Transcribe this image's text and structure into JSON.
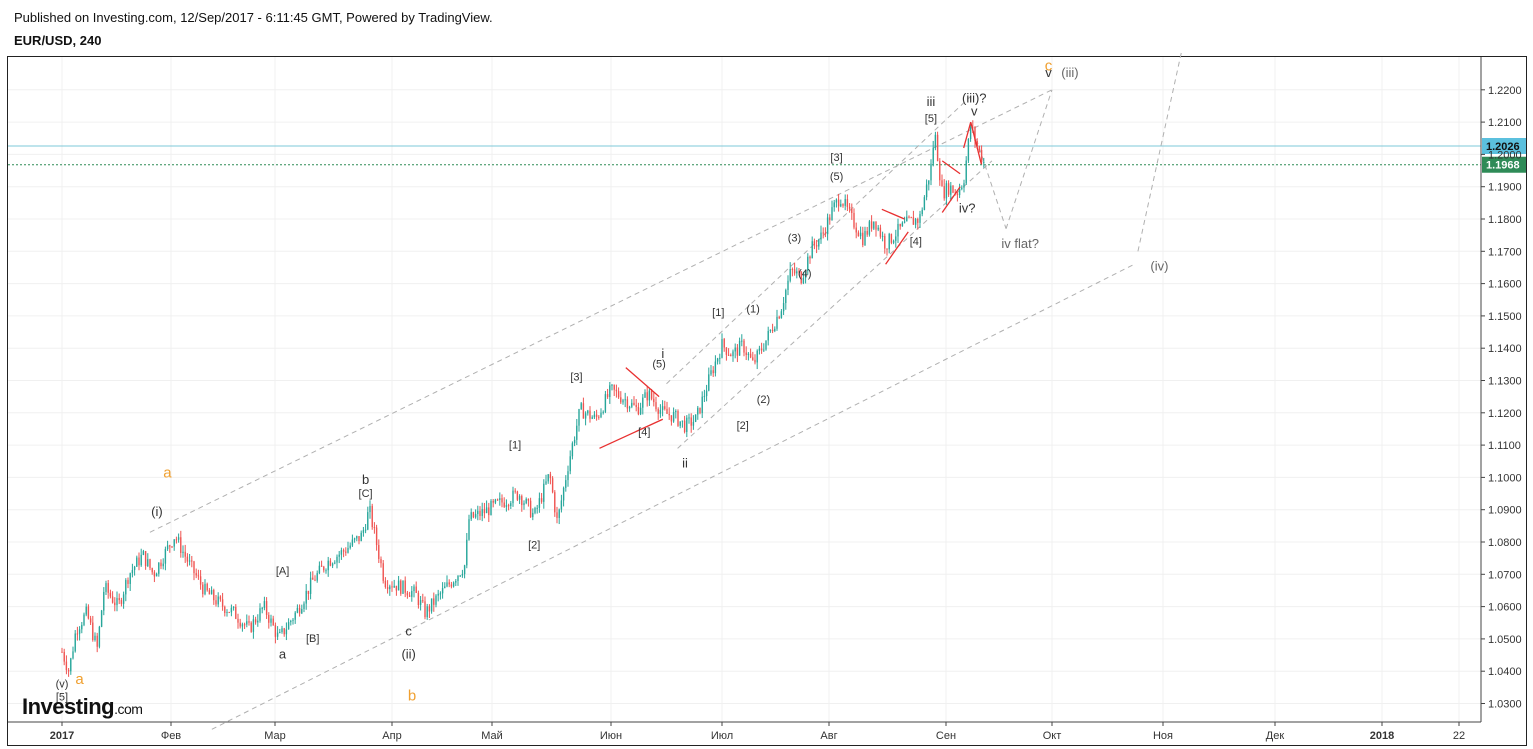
{
  "header": {
    "published": "Published on Investing.com, 12/Sep/2017 - 6:11:45 GMT, Powered by TradingView.",
    "symbol": "EUR/USD, 240"
  },
  "logo": {
    "main": "Investing",
    "suffix": ".com"
  },
  "colors": {
    "up": "#26a69a",
    "down": "#ef5350",
    "channel": "#b0b0b0",
    "resistance": "#7ec8d8",
    "price_tag_blue": "#5bc0de",
    "price_tag_green": "#2e8b57",
    "triangle": "#e83030",
    "orange_label": "#f0a030"
  },
  "chart_data": {
    "type": "candlestick",
    "title": "EUR/USD, 240",
    "y_ticks": [
      "1.2200",
      "1.2100",
      "1.2000",
      "1.1900",
      "1.1800",
      "1.1700",
      "1.1600",
      "1.1500",
      "1.1400",
      "1.1300",
      "1.1200",
      "1.1100",
      "1.1000",
      "1.0900",
      "1.0800",
      "1.0700",
      "1.0600",
      "1.0500",
      "1.0400",
      "1.0300"
    ],
    "ylim": [
      1.026,
      1.23
    ],
    "x_ticks": [
      {
        "label": "2017",
        "bold": true
      },
      {
        "label": "Фев"
      },
      {
        "label": "Мар"
      },
      {
        "label": "Апр"
      },
      {
        "label": "Май"
      },
      {
        "label": "Июн"
      },
      {
        "label": "Июл"
      },
      {
        "label": "Авг"
      },
      {
        "label": "Сен"
      },
      {
        "label": "Окт"
      },
      {
        "label": "Ноя"
      },
      {
        "label": "Дек"
      },
      {
        "label": "2018",
        "bold": true
      },
      {
        "label": "22"
      }
    ],
    "price_levels": [
      {
        "value": 1.2026,
        "label": "1.2026",
        "kind": "resistance"
      },
      {
        "value": 1.1968,
        "label": "1.1968",
        "kind": "last"
      }
    ],
    "price_path": [
      {
        "date": "2017-01-01",
        "price": 1.046
      },
      {
        "date": "2017-01-03",
        "price": 1.04
      },
      {
        "date": "2017-01-05",
        "price": 1.053
      },
      {
        "date": "2017-01-08",
        "price": 1.058
      },
      {
        "date": "2017-01-11",
        "price": 1.047
      },
      {
        "date": "2017-01-13",
        "price": 1.066
      },
      {
        "date": "2017-01-17",
        "price": 1.06
      },
      {
        "date": "2017-01-20",
        "price": 1.07
      },
      {
        "date": "2017-01-24",
        "price": 1.076
      },
      {
        "date": "2017-01-27",
        "price": 1.07
      },
      {
        "date": "2017-02-02",
        "price": 1.082
      },
      {
        "date": "2017-02-06",
        "price": 1.073
      },
      {
        "date": "2017-02-10",
        "price": 1.065
      },
      {
        "date": "2017-02-14",
        "price": 1.061
      },
      {
        "date": "2017-02-18",
        "price": 1.058
      },
      {
        "date": "2017-02-22",
        "price": 1.053
      },
      {
        "date": "2017-02-26",
        "price": 1.06
      },
      {
        "date": "2017-03-02",
        "price": 1.05
      },
      {
        "date": "2017-03-07",
        "price": 1.059
      },
      {
        "date": "2017-03-11",
        "price": 1.068
      },
      {
        "date": "2017-03-15",
        "price": 1.074
      },
      {
        "date": "2017-03-19",
        "price": 1.077
      },
      {
        "date": "2017-03-24",
        "price": 1.082
      },
      {
        "date": "2017-03-26",
        "price": 1.09
      },
      {
        "date": "2017-03-30",
        "price": 1.068
      },
      {
        "date": "2017-04-04",
        "price": 1.066
      },
      {
        "date": "2017-04-08",
        "price": 1.064
      },
      {
        "date": "2017-04-11",
        "price": 1.058
      },
      {
        "date": "2017-04-14",
        "price": 1.062
      },
      {
        "date": "2017-04-19",
        "price": 1.068
      },
      {
        "date": "2017-04-23",
        "price": 1.073
      },
      {
        "date": "2017-04-24",
        "price": 1.087
      },
      {
        "date": "2017-04-28",
        "price": 1.089
      },
      {
        "date": "2017-05-03",
        "price": 1.092
      },
      {
        "date": "2017-05-08",
        "price": 1.095
      },
      {
        "date": "2017-05-12",
        "price": 1.088
      },
      {
        "date": "2017-05-16",
        "price": 1.101
      },
      {
        "date": "2017-05-18",
        "price": 1.086
      },
      {
        "date": "2017-05-21",
        "price": 1.105
      },
      {
        "date": "2017-05-24",
        "price": 1.121
      },
      {
        "date": "2017-05-28",
        "price": 1.118
      },
      {
        "date": "2017-06-01",
        "price": 1.127
      },
      {
        "date": "2017-06-05",
        "price": 1.124
      },
      {
        "date": "2017-06-08",
        "price": 1.121
      },
      {
        "date": "2017-06-11",
        "price": 1.126
      },
      {
        "date": "2017-06-15",
        "price": 1.12
      },
      {
        "date": "2017-06-18",
        "price": 1.119
      },
      {
        "date": "2017-06-21",
        "price": 1.116
      },
      {
        "date": "2017-06-24",
        "price": 1.118
      },
      {
        "date": "2017-06-28",
        "price": 1.132
      },
      {
        "date": "2017-07-01",
        "price": 1.141
      },
      {
        "date": "2017-07-04",
        "price": 1.138
      },
      {
        "date": "2017-07-07",
        "price": 1.141
      },
      {
        "date": "2017-07-10",
        "price": 1.135
      },
      {
        "date": "2017-07-14",
        "price": 1.143
      },
      {
        "date": "2017-07-18",
        "price": 1.152
      },
      {
        "date": "2017-07-21",
        "price": 1.164
      },
      {
        "date": "2017-07-24",
        "price": 1.162
      },
      {
        "date": "2017-07-27",
        "price": 1.171
      },
      {
        "date": "2017-07-30",
        "price": 1.175
      },
      {
        "date": "2017-08-02",
        "price": 1.183
      },
      {
        "date": "2017-08-04",
        "price": 1.187
      },
      {
        "date": "2017-08-07",
        "price": 1.18
      },
      {
        "date": "2017-08-10",
        "price": 1.174
      },
      {
        "date": "2017-08-13",
        "price": 1.18
      },
      {
        "date": "2017-08-16",
        "price": 1.172
      },
      {
        "date": "2017-08-19",
        "price": 1.176
      },
      {
        "date": "2017-08-22",
        "price": 1.179
      },
      {
        "date": "2017-08-25",
        "price": 1.18
      },
      {
        "date": "2017-08-28",
        "price": 1.196
      },
      {
        "date": "2017-08-29",
        "price": 1.207
      },
      {
        "date": "2017-08-31",
        "price": 1.188
      },
      {
        "date": "2017-09-02",
        "price": 1.19
      },
      {
        "date": "2017-09-04",
        "price": 1.188
      },
      {
        "date": "2017-09-06",
        "price": 1.192
      },
      {
        "date": "2017-09-08",
        "price": 1.209
      },
      {
        "date": "2017-09-10",
        "price": 1.202
      },
      {
        "date": "2017-09-12",
        "price": 1.1968
      }
    ],
    "channels": [
      {
        "from": {
          "date": "2017-01-26",
          "price": 1.083
        },
        "to": {
          "date": "2017-10-01",
          "price": 1.22
        },
        "style": "dashed"
      },
      {
        "from": {
          "date": "2017-02-12",
          "price": 1.022
        },
        "to": {
          "date": "2017-10-24",
          "price": 1.166
        },
        "style": "dashed"
      },
      {
        "from": {
          "date": "2017-06-16",
          "price": 1.129
        },
        "to": {
          "date": "2017-09-08",
          "price": 1.218
        },
        "style": "dashed"
      },
      {
        "from": {
          "date": "2017-06-19",
          "price": 1.109
        },
        "to": {
          "date": "2017-09-14",
          "price": 1.198
        },
        "style": "dashed"
      },
      {
        "from": {
          "date": "2017-09-08",
          "price": 1.21
        },
        "to": {
          "date": "2017-09-18",
          "price": 1.177
        },
        "style": "dashed"
      },
      {
        "from": {
          "date": "2017-09-18",
          "price": 1.177
        },
        "to": {
          "date": "2017-10-01",
          "price": 1.22
        },
        "style": "dashed"
      },
      {
        "from": {
          "date": "2017-10-25",
          "price": 1.17
        },
        "to": {
          "date": "2017-11-06",
          "price": 1.232
        },
        "style": "dashed"
      }
    ],
    "triangle_lines": [
      {
        "from": {
          "date": "2017-06-05",
          "price": 1.134
        },
        "to": {
          "date": "2017-06-14",
          "price": 1.125
        }
      },
      {
        "from": {
          "date": "2017-05-29",
          "price": 1.109
        },
        "to": {
          "date": "2017-06-15",
          "price": 1.118
        }
      },
      {
        "from": {
          "date": "2017-08-15",
          "price": 1.183
        },
        "to": {
          "date": "2017-08-21",
          "price": 1.18
        }
      },
      {
        "from": {
          "date": "2017-08-16",
          "price": 1.166
        },
        "to": {
          "date": "2017-08-22",
          "price": 1.176
        }
      },
      {
        "from": {
          "date": "2017-08-31",
          "price": 1.198
        },
        "to": {
          "date": "2017-09-05",
          "price": 1.194
        }
      },
      {
        "from": {
          "date": "2017-08-31",
          "price": 1.182
        },
        "to": {
          "date": "2017-09-05",
          "price": 1.19
        }
      },
      {
        "from": {
          "date": "2017-09-06",
          "price": 1.202
        },
        "to": {
          "date": "2017-09-08",
          "price": 1.21
        }
      },
      {
        "from": {
          "date": "2017-09-08",
          "price": 1.21
        },
        "to": {
          "date": "2017-09-11",
          "price": 1.197
        }
      }
    ],
    "wave_labels": [
      {
        "text": "a",
        "date": "2017-01-31",
        "price": 1.1,
        "style": "orange"
      },
      {
        "text": "(i)",
        "date": "2017-01-28",
        "price": 1.088
      },
      {
        "text": "b",
        "date": "2017-03-25",
        "price": 1.098
      },
      {
        "text": "[C]",
        "date": "2017-03-25",
        "price": 1.094,
        "style": "small"
      },
      {
        "text": "[A]",
        "date": "2017-03-03",
        "price": 1.07,
        "style": "small"
      },
      {
        "text": "[B]",
        "date": "2017-03-11",
        "price": 1.049,
        "style": "small"
      },
      {
        "text": "a",
        "date": "2017-03-03",
        "price": 1.044
      },
      {
        "text": "c",
        "date": "2017-04-06",
        "price": 1.051
      },
      {
        "text": "(ii)",
        "date": "2017-04-06",
        "price": 1.044
      },
      {
        "text": "b",
        "date": "2017-04-07",
        "price": 1.031,
        "style": "orange"
      },
      {
        "text": "[1]",
        "date": "2017-05-07",
        "price": 1.109,
        "style": "small"
      },
      {
        "text": "[2]",
        "date": "2017-05-12",
        "price": 1.078,
        "style": "small"
      },
      {
        "text": "[3]",
        "date": "2017-05-23",
        "price": 1.13,
        "style": "small"
      },
      {
        "text": "[4]",
        "date": "2017-06-10",
        "price": 1.113,
        "style": "small"
      },
      {
        "text": "i",
        "date": "2017-06-15",
        "price": 1.137
      },
      {
        "text": "(5)",
        "date": "2017-06-14",
        "price": 1.134,
        "style": "small"
      },
      {
        "text": "ii",
        "date": "2017-06-21",
        "price": 1.103
      },
      {
        "text": "[1]",
        "date": "2017-06-30",
        "price": 1.15,
        "style": "small"
      },
      {
        "text": "[2]",
        "date": "2017-07-07",
        "price": 1.115,
        "style": "small"
      },
      {
        "text": "(1)",
        "date": "2017-07-10",
        "price": 1.151,
        "style": "small"
      },
      {
        "text": "(2)",
        "date": "2017-07-13",
        "price": 1.123,
        "style": "small"
      },
      {
        "text": "(3)",
        "date": "2017-07-22",
        "price": 1.173,
        "style": "small"
      },
      {
        "text": "(4)",
        "date": "2017-07-25",
        "price": 1.162,
        "style": "small"
      },
      {
        "text": "(5)",
        "date": "2017-08-03",
        "price": 1.192,
        "style": "small"
      },
      {
        "text": "[3]",
        "date": "2017-08-03",
        "price": 1.198,
        "style": "small"
      },
      {
        "text": "[4]",
        "date": "2017-08-24",
        "price": 1.172,
        "style": "small"
      },
      {
        "text": "iii",
        "date": "2017-08-28",
        "price": 1.215
      },
      {
        "text": "[5]",
        "date": "2017-08-28",
        "price": 1.21,
        "style": "small"
      },
      {
        "text": "(iii)?",
        "date": "2017-09-09",
        "price": 1.216
      },
      {
        "text": "v",
        "date": "2017-09-09",
        "price": 1.212
      },
      {
        "text": "iv?",
        "date": "2017-09-07",
        "price": 1.182
      },
      {
        "text": "iv flat?",
        "date": "2017-09-22",
        "price": 1.171,
        "style": "grey"
      },
      {
        "text": "v",
        "date": "2017-09-30",
        "price": 1.224
      },
      {
        "text": "c",
        "date": "2017-09-30",
        "price": 1.226,
        "style": "orange"
      },
      {
        "text": "(iii)",
        "date": "2017-10-06",
        "price": 1.224,
        "style": "grey"
      },
      {
        "text": "(iv)",
        "date": "2017-10-31",
        "price": 1.164,
        "style": "grey"
      },
      {
        "text": "(v)",
        "date": "2017-01-01",
        "price": 1.035,
        "style": "small"
      },
      {
        "text": "[5]",
        "date": "2017-01-01",
        "price": 1.031,
        "style": "small"
      },
      {
        "text": "a",
        "date": "2017-01-06",
        "price": 1.036,
        "style": "orange"
      }
    ]
  }
}
